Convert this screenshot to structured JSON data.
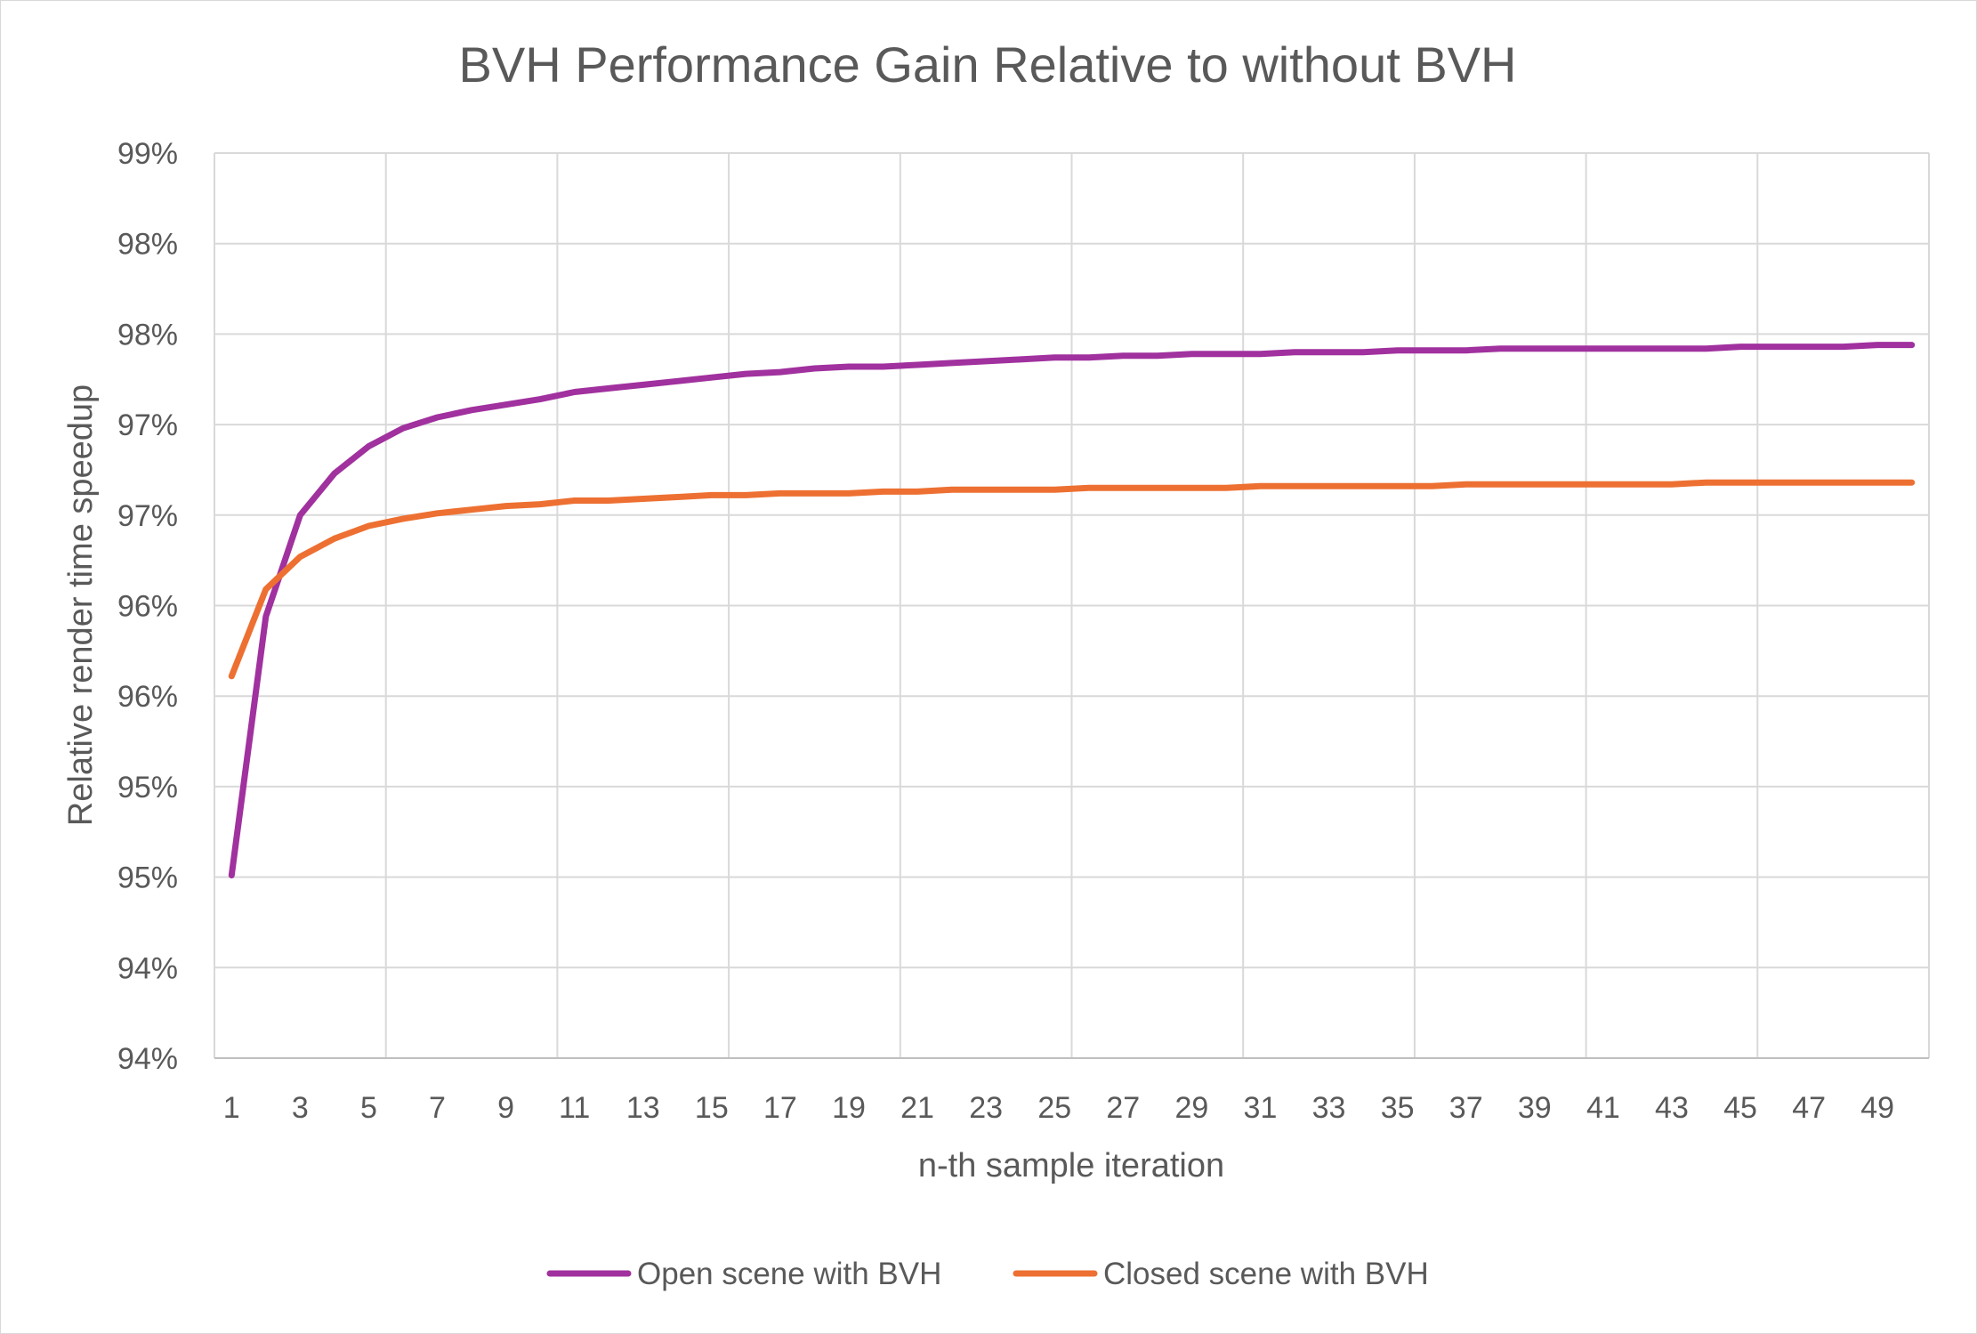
{
  "chart_data": {
    "type": "line",
    "title": "BVH Performance Gain Relative to without BVH",
    "xlabel": "n-th sample iteration",
    "ylabel": "Relative render time speedup",
    "ylim": [
      0.94,
      0.99
    ],
    "y_ticks": [
      0.94,
      0.945,
      0.95,
      0.955,
      0.96,
      0.965,
      0.97,
      0.975,
      0.98,
      0.985,
      0.99
    ],
    "y_tick_labels": [
      "94%",
      "94%",
      "95%",
      "95%",
      "96%",
      "96%",
      "97%",
      "97%",
      "98%",
      "98%",
      "99%"
    ],
    "x": [
      1,
      2,
      3,
      4,
      5,
      6,
      7,
      8,
      9,
      10,
      11,
      12,
      13,
      14,
      15,
      16,
      17,
      18,
      19,
      20,
      21,
      22,
      23,
      24,
      25,
      26,
      27,
      28,
      29,
      30,
      31,
      32,
      33,
      34,
      35,
      36,
      37,
      38,
      39,
      40,
      41,
      42,
      43,
      44,
      45,
      46,
      47,
      48,
      49,
      50
    ],
    "x_tick_labels": [
      "1",
      "3",
      "5",
      "7",
      "9",
      "11",
      "13",
      "15",
      "17",
      "19",
      "21",
      "23",
      "25",
      "27",
      "29",
      "31",
      "33",
      "35",
      "37",
      "39",
      "41",
      "43",
      "45",
      "47",
      "49"
    ],
    "grid": true,
    "legend_position": "bottom",
    "series": [
      {
        "name": "Open scene with BVH",
        "color": "#a0319e",
        "values": [
          0.9501,
          0.9644,
          0.97,
          0.9723,
          0.9738,
          0.9748,
          0.9754,
          0.9758,
          0.9761,
          0.9764,
          0.9768,
          0.977,
          0.9772,
          0.9774,
          0.9776,
          0.9778,
          0.9779,
          0.9781,
          0.9782,
          0.9782,
          0.9783,
          0.9784,
          0.9785,
          0.9786,
          0.9787,
          0.9787,
          0.9788,
          0.9788,
          0.9789,
          0.9789,
          0.9789,
          0.979,
          0.979,
          0.979,
          0.9791,
          0.9791,
          0.9791,
          0.9792,
          0.9792,
          0.9792,
          0.9792,
          0.9792,
          0.9792,
          0.9792,
          0.9793,
          0.9793,
          0.9793,
          0.9793,
          0.9794,
          0.9794
        ]
      },
      {
        "name": "Closed scene with BVH",
        "color": "#ed7032",
        "values": [
          0.9611,
          0.9659,
          0.9677,
          0.9687,
          0.9694,
          0.9698,
          0.9701,
          0.9703,
          0.9705,
          0.9706,
          0.9708,
          0.9708,
          0.9709,
          0.971,
          0.9711,
          0.9711,
          0.9712,
          0.9712,
          0.9712,
          0.9713,
          0.9713,
          0.9714,
          0.9714,
          0.9714,
          0.9714,
          0.9715,
          0.9715,
          0.9715,
          0.9715,
          0.9715,
          0.9716,
          0.9716,
          0.9716,
          0.9716,
          0.9716,
          0.9716,
          0.9717,
          0.9717,
          0.9717,
          0.9717,
          0.9717,
          0.9717,
          0.9717,
          0.9718,
          0.9718,
          0.9718,
          0.9718,
          0.9718,
          0.9718,
          0.9718
        ]
      }
    ]
  }
}
